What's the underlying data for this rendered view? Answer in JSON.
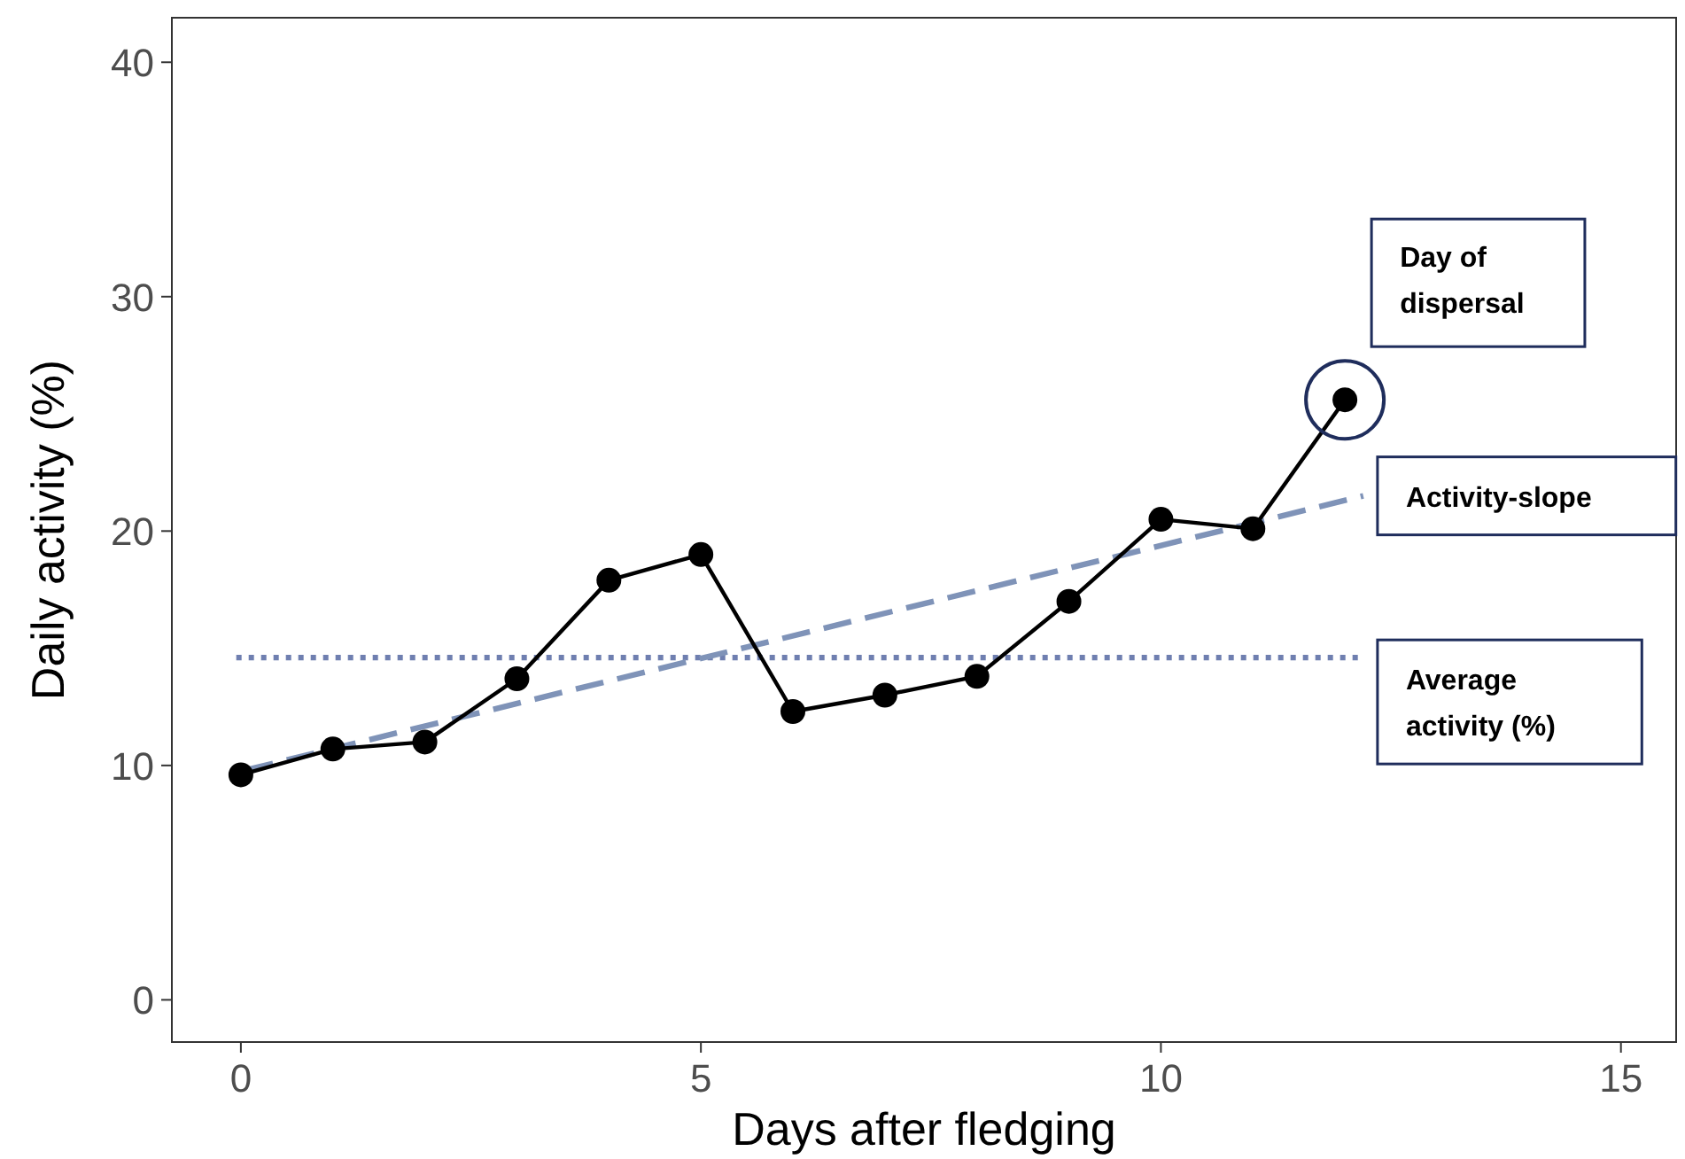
{
  "chart_data": {
    "type": "line",
    "xlabel": "Days after fledging",
    "ylabel": "Daily activity (%)",
    "xlim": [
      -0.75,
      15.6
    ],
    "ylim": [
      -1.8,
      41.9
    ],
    "xticks": [
      0,
      5,
      10,
      15
    ],
    "yticks": [
      0,
      10,
      20,
      30,
      40
    ],
    "grid": false,
    "x": [
      0,
      1,
      2,
      3,
      4,
      5,
      6,
      7,
      8,
      9,
      10,
      11,
      12
    ],
    "series": [
      {
        "color": "#000000",
        "marker": "circle",
        "line_style": "solid",
        "values": [
          9.6,
          10.7,
          11.0,
          13.7,
          17.9,
          19.0,
          12.3,
          13.0,
          13.8,
          17.0,
          20.5,
          20.1,
          25.6
        ]
      },
      {
        "name": "Activity-slope",
        "color": "#7f93b8",
        "marker": "none",
        "line_style": "dashed",
        "x": [
          0.05,
          12.2
        ],
        "values": [
          9.8,
          21.5
        ]
      },
      {
        "name": "Average activity (%)",
        "color": "#6f7fb0",
        "marker": "none",
        "line_style": "dotted",
        "x": [
          -0.05,
          12.2
        ],
        "values": [
          14.6,
          14.6
        ]
      }
    ],
    "annotations": [
      "Day of dispersal"
    ]
  }
}
